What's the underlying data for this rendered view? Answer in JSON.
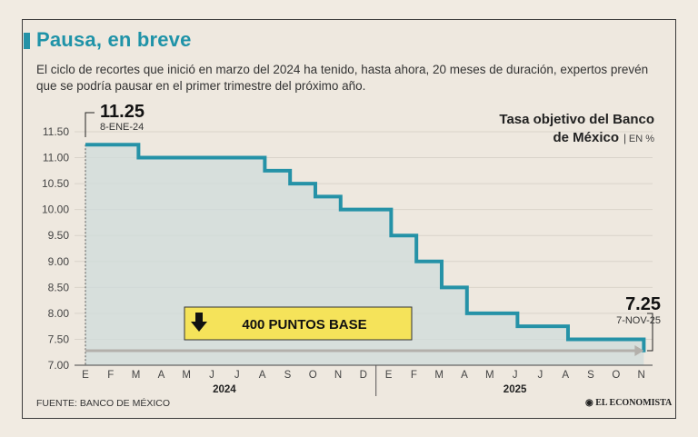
{
  "header": {
    "title": "Pausa, en breve",
    "subtitle": "El ciclo de recortes que inició en marzo del 2024 ha tenido, hasta ahora, 20 meses de duración, expertos prevén que se podría pausar en el primer trimestre del próximo año."
  },
  "footer": {
    "source": "FUENTE: BANCO DE MÉXICO",
    "brand": "EL ECONOMISTA"
  },
  "colors": {
    "line": "#2592a7",
    "area": "#cfdcdb",
    "banner": "#f5e35a",
    "arrow": "#b3b0ab"
  },
  "chart_data": {
    "type": "line",
    "step": true,
    "title_line1": "Tasa objetivo del Banco",
    "title_line2": "de México",
    "unit": "EN %",
    "ylim": [
      7.0,
      11.5
    ],
    "yticks": [
      "11.50",
      "11.00",
      "10.50",
      "10.00",
      "9.50",
      "9.00",
      "8.50",
      "8.00",
      "7.50",
      "7.00"
    ],
    "months": [
      "E",
      "F",
      "M",
      "A",
      "M",
      "J",
      "J",
      "A",
      "S",
      "O",
      "N",
      "D",
      "E",
      "F",
      "M",
      "A",
      "M",
      "J",
      "J",
      "A",
      "S",
      "O",
      "N"
    ],
    "years": [
      "2024",
      "2025"
    ],
    "series": [
      {
        "name": "Tasa objetivo",
        "x": [
          0,
          2.1,
          7.1,
          8.1,
          9.1,
          10.1,
          12.1,
          13.1,
          14.1,
          15.1,
          16.1,
          17.1,
          18.1,
          19.1,
          20.1,
          21.1,
          22.1
        ],
        "values": [
          11.25,
          11.0,
          10.75,
          10.5,
          10.25,
          10.0,
          9.5,
          9.0,
          8.5,
          8.0,
          8.0,
          7.75,
          7.75,
          7.5,
          7.5,
          7.5,
          7.25
        ]
      }
    ],
    "end_x": 22.1,
    "start": {
      "value": "11.25",
      "date": "8-ENE-24"
    },
    "end": {
      "value": "7.25",
      "date": "7-NOV-25"
    },
    "banner": "400 PUNTOS BASE"
  }
}
